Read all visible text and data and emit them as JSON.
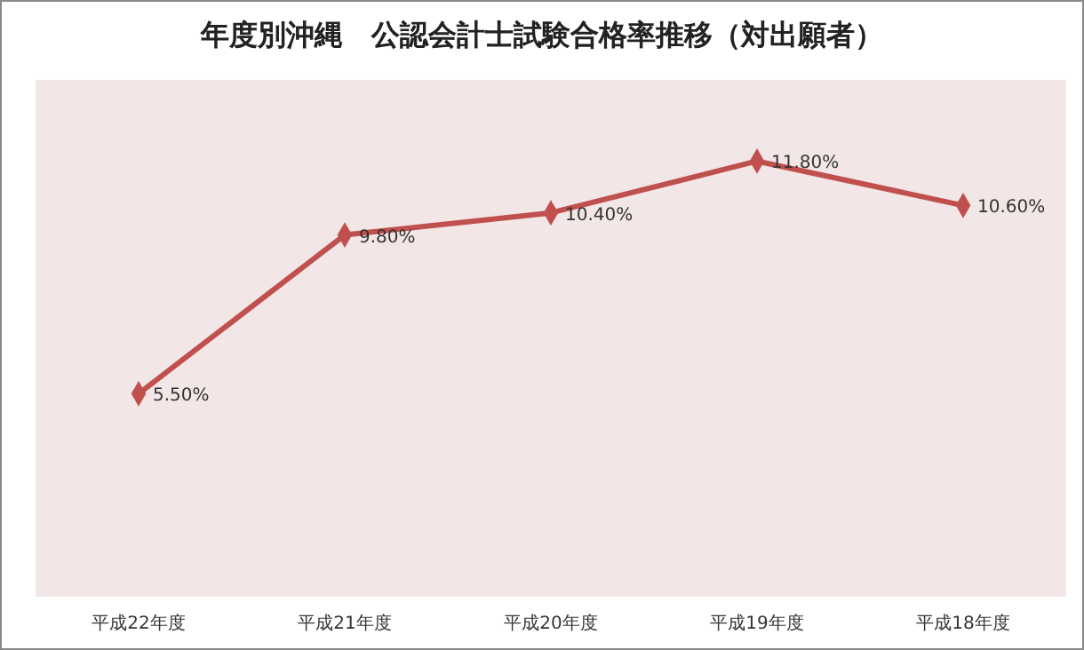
{
  "chart_data": {
    "type": "line",
    "title": "年度別沖縄　公認会計士試験合格率推移（対出願者）",
    "categories": [
      "平成22年度",
      "平成21年度",
      "平成20年度",
      "平成19年度",
      "平成18年度"
    ],
    "series": [
      {
        "color": "#c0504d",
        "values": [
          5.5,
          9.8,
          10.4,
          11.8,
          10.6
        ],
        "value_labels": [
          "5.50%",
          "9.80%",
          "10.40%",
          "11.80%",
          "10.60%"
        ]
      }
    ],
    "ylim": [
      0,
      14
    ],
    "tick_labels": "x",
    "marker": "diamond",
    "line_style": "solid"
  }
}
